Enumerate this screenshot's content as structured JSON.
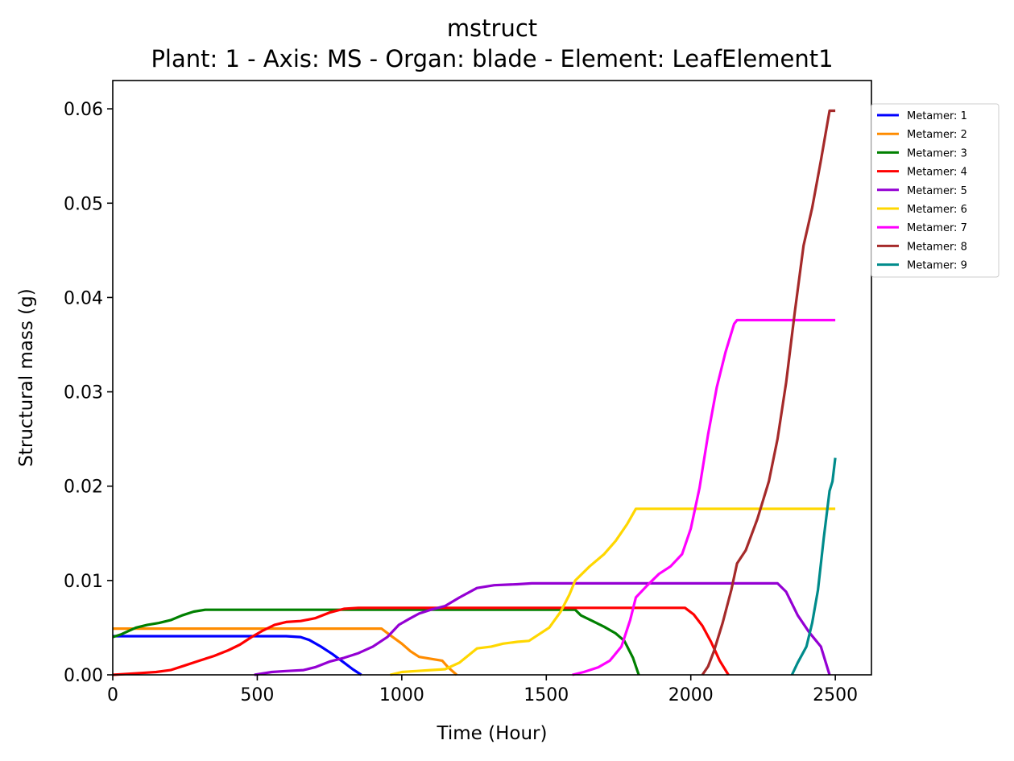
{
  "chart_data": {
    "type": "line",
    "title": "mstruct",
    "subtitle": "Plant: 1 - Axis: MS - Organ: blade - Element: LeafElement1",
    "xlabel": "Time (Hour)",
    "ylabel": "Structural mass (g)",
    "xlim": [
      0,
      2625
    ],
    "ylim": [
      0,
      0.063
    ],
    "xticks": [
      0,
      500,
      1000,
      1500,
      2000,
      2500
    ],
    "xtick_labels": [
      "0",
      "500",
      "1000",
      "1500",
      "2000",
      "2500"
    ],
    "yticks": [
      0,
      0.01,
      0.02,
      0.03,
      0.04,
      0.05,
      0.06
    ],
    "ytick_labels": [
      "0.00",
      "0.01",
      "0.02",
      "0.03",
      "0.04",
      "0.05",
      "0.06"
    ],
    "grid": false,
    "legend_position": "outside-top-right",
    "series": [
      {
        "name": "Metamer: 1",
        "color": "#0000ff",
        "points": [
          [
            0,
            0.0041
          ],
          [
            100,
            0.0041
          ],
          [
            200,
            0.0041
          ],
          [
            300,
            0.0041
          ],
          [
            400,
            0.0041
          ],
          [
            500,
            0.0041
          ],
          [
            600,
            0.0041
          ],
          [
            650,
            0.004
          ],
          [
            680,
            0.0037
          ],
          [
            720,
            0.003
          ],
          [
            760,
            0.0022
          ],
          [
            800,
            0.0013
          ],
          [
            830,
            0.0006
          ],
          [
            860,
            0
          ]
        ]
      },
      {
        "name": "Metamer: 2",
        "color": "#ff8c00",
        "points": [
          [
            0,
            0.0049
          ],
          [
            200,
            0.0049
          ],
          [
            400,
            0.0049
          ],
          [
            600,
            0.0049
          ],
          [
            800,
            0.0049
          ],
          [
            930,
            0.0049
          ],
          [
            960,
            0.0042
          ],
          [
            1000,
            0.0033
          ],
          [
            1030,
            0.0025
          ],
          [
            1060,
            0.0019
          ],
          [
            1100,
            0.0017
          ],
          [
            1140,
            0.0015
          ],
          [
            1160,
            0.0008
          ],
          [
            1190,
            0
          ]
        ]
      },
      {
        "name": "Metamer: 3",
        "color": "#008000",
        "points": [
          [
            0,
            0.004
          ],
          [
            30,
            0.0043
          ],
          [
            80,
            0.005
          ],
          [
            120,
            0.0053
          ],
          [
            160,
            0.0055
          ],
          [
            200,
            0.0058
          ],
          [
            240,
            0.0063
          ],
          [
            280,
            0.0067
          ],
          [
            320,
            0.0069
          ],
          [
            400,
            0.0069
          ],
          [
            800,
            0.0069
          ],
          [
            1200,
            0.0069
          ],
          [
            1600,
            0.0069
          ],
          [
            1620,
            0.0063
          ],
          [
            1660,
            0.0057
          ],
          [
            1700,
            0.0051
          ],
          [
            1740,
            0.0044
          ],
          [
            1770,
            0.0036
          ],
          [
            1800,
            0.0018
          ],
          [
            1820,
            0
          ]
        ]
      },
      {
        "name": "Metamer: 4",
        "color": "#ff0000",
        "points": [
          [
            0,
            0
          ],
          [
            50,
            0.0001
          ],
          [
            100,
            0.0002
          ],
          [
            150,
            0.0003
          ],
          [
            200,
            0.0005
          ],
          [
            250,
            0.001
          ],
          [
            300,
            0.0015
          ],
          [
            350,
            0.002
          ],
          [
            400,
            0.0026
          ],
          [
            440,
            0.0032
          ],
          [
            480,
            0.004
          ],
          [
            520,
            0.0047
          ],
          [
            560,
            0.0053
          ],
          [
            600,
            0.0056
          ],
          [
            650,
            0.0057
          ],
          [
            700,
            0.006
          ],
          [
            750,
            0.0066
          ],
          [
            800,
            0.007
          ],
          [
            850,
            0.0071
          ],
          [
            1000,
            0.0071
          ],
          [
            1500,
            0.0071
          ],
          [
            1900,
            0.0071
          ],
          [
            1980,
            0.0071
          ],
          [
            2010,
            0.0064
          ],
          [
            2040,
            0.0052
          ],
          [
            2070,
            0.0035
          ],
          [
            2100,
            0.0015
          ],
          [
            2130,
            0
          ]
        ]
      },
      {
        "name": "Metamer: 5",
        "color": "#9400d3",
        "points": [
          [
            490,
            0
          ],
          [
            550,
            0.0003
          ],
          [
            600,
            0.0004
          ],
          [
            660,
            0.0005
          ],
          [
            700,
            0.0008
          ],
          [
            750,
            0.0014
          ],
          [
            800,
            0.0018
          ],
          [
            850,
            0.0023
          ],
          [
            900,
            0.003
          ],
          [
            950,
            0.004
          ],
          [
            990,
            0.0053
          ],
          [
            1030,
            0.006
          ],
          [
            1060,
            0.0065
          ],
          [
            1100,
            0.0069
          ],
          [
            1150,
            0.0073
          ],
          [
            1200,
            0.0082
          ],
          [
            1260,
            0.0092
          ],
          [
            1320,
            0.0095
          ],
          [
            1400,
            0.0096
          ],
          [
            1450,
            0.0097
          ],
          [
            1500,
            0.0097
          ],
          [
            2000,
            0.0097
          ],
          [
            2300,
            0.0097
          ],
          [
            2330,
            0.0088
          ],
          [
            2370,
            0.0063
          ],
          [
            2410,
            0.0045
          ],
          [
            2450,
            0.003
          ],
          [
            2480,
            0
          ]
        ]
      },
      {
        "name": "Metamer: 6",
        "color": "#ffd700",
        "points": [
          [
            960,
            0
          ],
          [
            1000,
            0.0003
          ],
          [
            1050,
            0.0004
          ],
          [
            1100,
            0.0005
          ],
          [
            1150,
            0.0006
          ],
          [
            1200,
            0.0013
          ],
          [
            1260,
            0.0028
          ],
          [
            1310,
            0.003
          ],
          [
            1350,
            0.0033
          ],
          [
            1400,
            0.0035
          ],
          [
            1440,
            0.0036
          ],
          [
            1470,
            0.0042
          ],
          [
            1510,
            0.005
          ],
          [
            1550,
            0.0067
          ],
          [
            1580,
            0.0085
          ],
          [
            1600,
            0.01
          ],
          [
            1650,
            0.0115
          ],
          [
            1700,
            0.0128
          ],
          [
            1740,
            0.0142
          ],
          [
            1780,
            0.016
          ],
          [
            1810,
            0.0176
          ],
          [
            2000,
            0.0176
          ],
          [
            2200,
            0.0176
          ],
          [
            2500,
            0.0176
          ]
        ]
      },
      {
        "name": "Metamer: 7",
        "color": "#ff00ff",
        "points": [
          [
            1590,
            0
          ],
          [
            1630,
            0.0003
          ],
          [
            1680,
            0.0008
          ],
          [
            1720,
            0.0015
          ],
          [
            1760,
            0.003
          ],
          [
            1790,
            0.0058
          ],
          [
            1810,
            0.0082
          ],
          [
            1850,
            0.0095
          ],
          [
            1890,
            0.0107
          ],
          [
            1930,
            0.0115
          ],
          [
            1970,
            0.0128
          ],
          [
            2000,
            0.0155
          ],
          [
            2030,
            0.0198
          ],
          [
            2060,
            0.0255
          ],
          [
            2090,
            0.0305
          ],
          [
            2120,
            0.0342
          ],
          [
            2150,
            0.0372
          ],
          [
            2160,
            0.0376
          ],
          [
            2300,
            0.0376
          ],
          [
            2500,
            0.0376
          ]
        ]
      },
      {
        "name": "Metamer: 8",
        "color": "#a52a2a",
        "points": [
          [
            2040,
            0
          ],
          [
            2060,
            0.0009
          ],
          [
            2080,
            0.0025
          ],
          [
            2110,
            0.0055
          ],
          [
            2140,
            0.009
          ],
          [
            2160,
            0.0118
          ],
          [
            2190,
            0.0132
          ],
          [
            2230,
            0.0165
          ],
          [
            2270,
            0.0205
          ],
          [
            2300,
            0.025
          ],
          [
            2330,
            0.031
          ],
          [
            2360,
            0.0385
          ],
          [
            2390,
            0.0455
          ],
          [
            2420,
            0.0495
          ],
          [
            2450,
            0.0545
          ],
          [
            2480,
            0.0598
          ],
          [
            2500,
            0.0598
          ]
        ]
      },
      {
        "name": "Metamer: 9",
        "color": "#008b8b",
        "points": [
          [
            2350,
            0
          ],
          [
            2370,
            0.0013
          ],
          [
            2400,
            0.003
          ],
          [
            2420,
            0.0055
          ],
          [
            2440,
            0.009
          ],
          [
            2460,
            0.0145
          ],
          [
            2480,
            0.0195
          ],
          [
            2490,
            0.0205
          ],
          [
            2500,
            0.023
          ]
        ]
      }
    ]
  }
}
